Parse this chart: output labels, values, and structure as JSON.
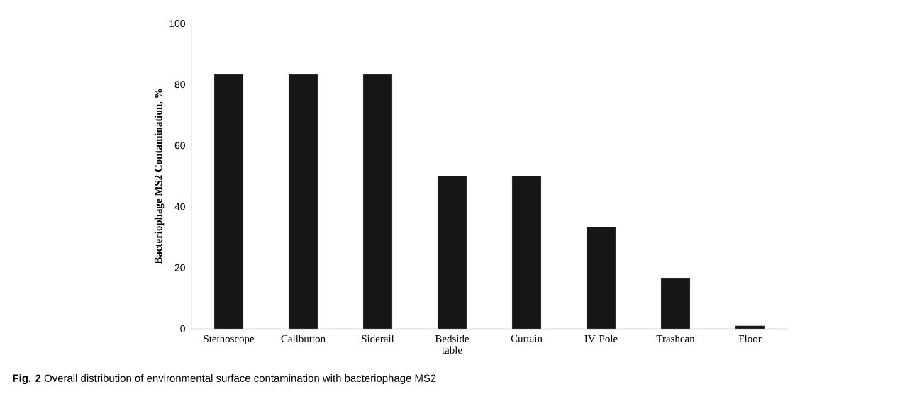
{
  "chart_data": {
    "type": "bar",
    "ylabel": "Bacteriophage MS2 Contamination, %",
    "categories": [
      "Stethoscope",
      "Callbutton",
      "Siderail",
      "Bedside table",
      "Curtain",
      "IV Pole",
      "Trashcan",
      "Floor"
    ],
    "values": [
      83.3,
      83.3,
      83.3,
      50,
      50,
      33.3,
      16.7,
      1
    ],
    "color": "#161616",
    "ylim": [
      0,
      100
    ],
    "yticks": [
      0,
      20,
      40,
      60,
      80,
      100
    ],
    "grid": false,
    "annotations": [
      "**Fig. 2** Overall distribution of environmental surface contamination with bacteriophage MS2"
    ]
  }
}
